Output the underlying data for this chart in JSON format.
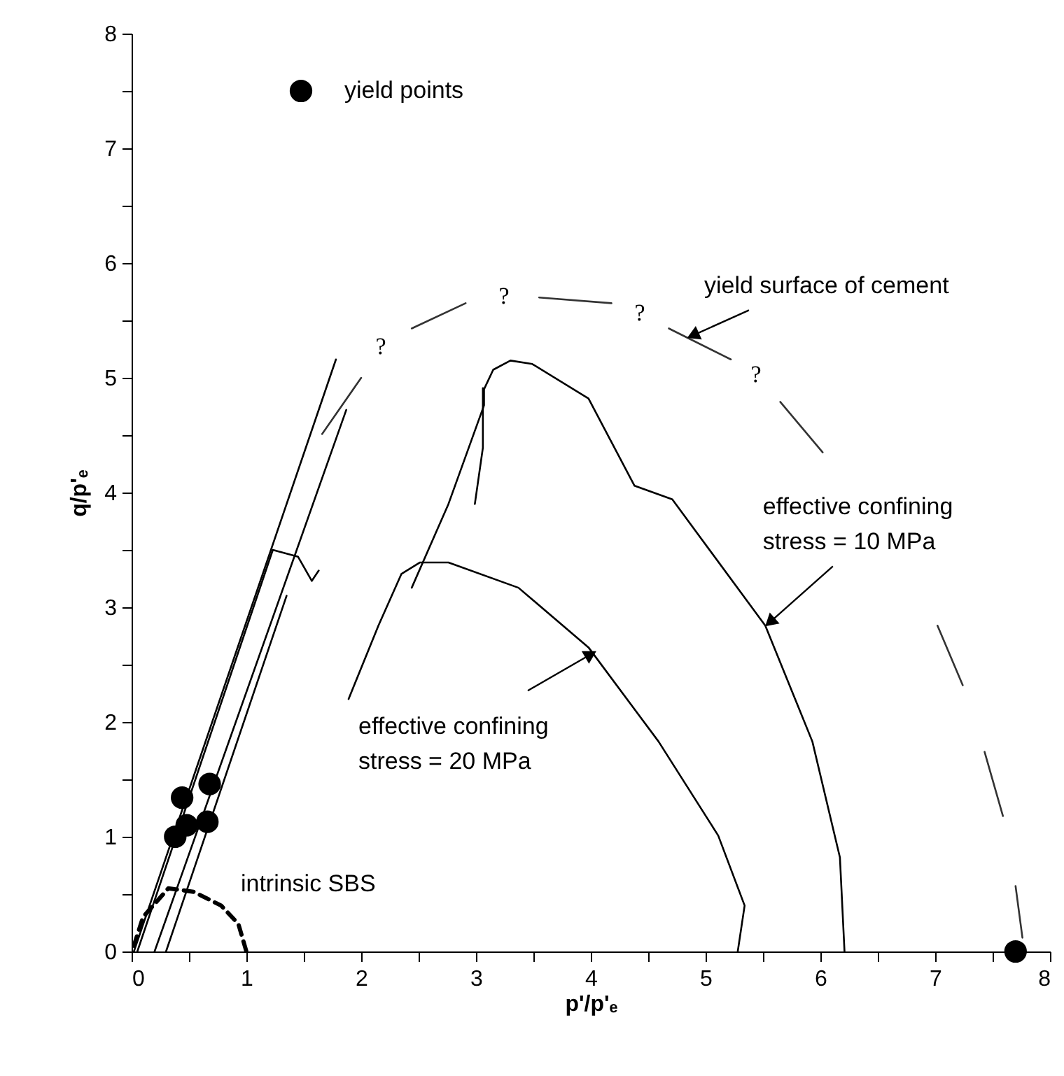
{
  "chart_data": {
    "type": "line",
    "xlabel": "p'/p'ₑ",
    "ylabel": "q/p'ₑ",
    "xlim": [
      0,
      8
    ],
    "ylim": [
      0,
      8
    ],
    "xticks": [
      0,
      {
        "value": 0.5,
        "label": null
      },
      1,
      {
        "value": 1.5,
        "label": null
      },
      2,
      {
        "value": 2.5,
        "label": null
      },
      3,
      {
        "value": 3.5,
        "label": null
      },
      4,
      {
        "value": 4.5,
        "label": null
      },
      5,
      {
        "value": 5.5,
        "label": null
      },
      6,
      {
        "value": 6.5,
        "label": null
      },
      7,
      {
        "value": 7.5,
        "label": null
      },
      8
    ],
    "yticks": [
      0,
      {
        "value": 0.5,
        "label": null
      },
      1,
      {
        "value": 1.5,
        "label": null
      },
      2,
      {
        "value": 2.5,
        "label": null
      },
      3,
      {
        "value": 3.5,
        "label": null
      },
      4,
      {
        "value": 4.5,
        "label": null
      },
      5,
      {
        "value": 5.5,
        "label": null
      },
      6,
      {
        "value": 6.5,
        "label": null
      },
      7,
      {
        "value": 7.5,
        "label": null
      },
      8
    ],
    "legend": "top left",
    "series": [
      {
        "color": "#000000",
        "line_style": "solid",
        "x": [
          2.44,
          2.76,
          3.07,
          3.07,
          3.15,
          3.3,
          3.49,
          3.98,
          4.38,
          4.71,
          5.52,
          5.93,
          6.17,
          6.21
        ],
        "values": [
          3.17,
          3.9,
          4.76,
          4.9,
          5.07,
          5.15,
          5.12,
          4.82,
          4.06,
          3.94,
          2.84,
          1.83,
          0.82,
          0
        ]
      },
      {
        "color": "#000000",
        "line_style": "solid",
        "x": [
          3.06,
          3.06,
          2.99
        ],
        "values": [
          4.91,
          4.39,
          3.9
        ]
      },
      {
        "color": "#000000",
        "line_style": "solid",
        "x": [
          1.89,
          2.15,
          2.35,
          2.51,
          2.76,
          3.37,
          3.98,
          4.59,
          5.11,
          5.34,
          5.28
        ],
        "values": [
          2.2,
          2.84,
          3.29,
          3.39,
          3.39,
          3.17,
          2.65,
          1.83,
          1.01,
          0.4,
          0
        ]
      },
      {
        "color": "#000000",
        "line_style": "solid",
        "x": [
          0.02,
          1.78
        ],
        "values": [
          0,
          5.16
        ]
      },
      {
        "color": "#000000",
        "line_style": "solid",
        "x": [
          0.2,
          1.87
        ],
        "values": [
          0,
          4.72
        ]
      },
      {
        "color": "#000000",
        "line_style": "solid",
        "x": [
          0.05,
          1.23,
          1.45,
          1.57,
          1.63
        ],
        "values": [
          0,
          3.5,
          3.44,
          3.23,
          3.32
        ]
      },
      {
        "color": "#000000",
        "line_style": "solid",
        "x": [
          0.3,
          1.35
        ],
        "values": [
          0,
          3.1
        ]
      },
      {
        "color": "#000000",
        "line_style": "dashed",
        "x": [
          0.02,
          0.1,
          0.32,
          0.54,
          0.78,
          0.93,
          1.0
        ],
        "values": [
          0.05,
          0.3,
          0.55,
          0.52,
          0.4,
          0.24,
          0
        ]
      },
      {
        "color": "#333333",
        "line_style": "solid",
        "x": [
          1.66,
          2.0
        ],
        "values": [
          4.51,
          5.0
        ]
      },
      {
        "color": "#333333",
        "line_style": "solid",
        "x": [
          2.44,
          2.91
        ],
        "values": [
          5.43,
          5.65
        ]
      },
      {
        "color": "#333333",
        "line_style": "solid",
        "x": [
          3.55,
          4.18
        ],
        "values": [
          5.7,
          5.65
        ]
      },
      {
        "color": "#333333",
        "line_style": "solid",
        "x": [
          4.68,
          5.22
        ],
        "values": [
          5.43,
          5.16
        ]
      },
      {
        "color": "#333333",
        "line_style": "solid",
        "x": [
          5.65,
          6.02
        ],
        "values": [
          4.79,
          4.35
        ]
      },
      {
        "color": "#333333",
        "line_style": "solid",
        "x": [
          7.02,
          7.24
        ],
        "values": [
          2.84,
          2.32
        ]
      },
      {
        "color": "#333333",
        "line_style": "solid",
        "x": [
          7.43,
          7.59
        ],
        "values": [
          1.74,
          1.18
        ]
      },
      {
        "color": "#333333",
        "line_style": "solid",
        "x": [
          7.7,
          7.76
        ],
        "values": [
          0.57,
          0.12
        ]
      },
      {
        "type": "scatter",
        "name": "yield points",
        "color": "#000000",
        "marker": "circle",
        "x": [
          0.38,
          0.44,
          0.48,
          0.66,
          0.68,
          7.7
        ],
        "values": [
          1.0,
          1.34,
          1.1,
          1.13,
          1.46,
          0
        ]
      }
    ],
    "annotations": [
      {
        "text": "yield surface of cement",
        "x": 4.89,
        "y": 5.37
      },
      {
        "text": "effective confining\nstress = 10 MPa",
        "x": 5.56,
        "y": 2.87
      },
      {
        "text": "effective confining\nstress = 20 MPa",
        "x": 4.0,
        "y": 2.59
      },
      {
        "text": "intrinsic SBS",
        "x": 0.78,
        "y": 0.4
      },
      "?",
      "?",
      "?",
      "?"
    ]
  }
}
